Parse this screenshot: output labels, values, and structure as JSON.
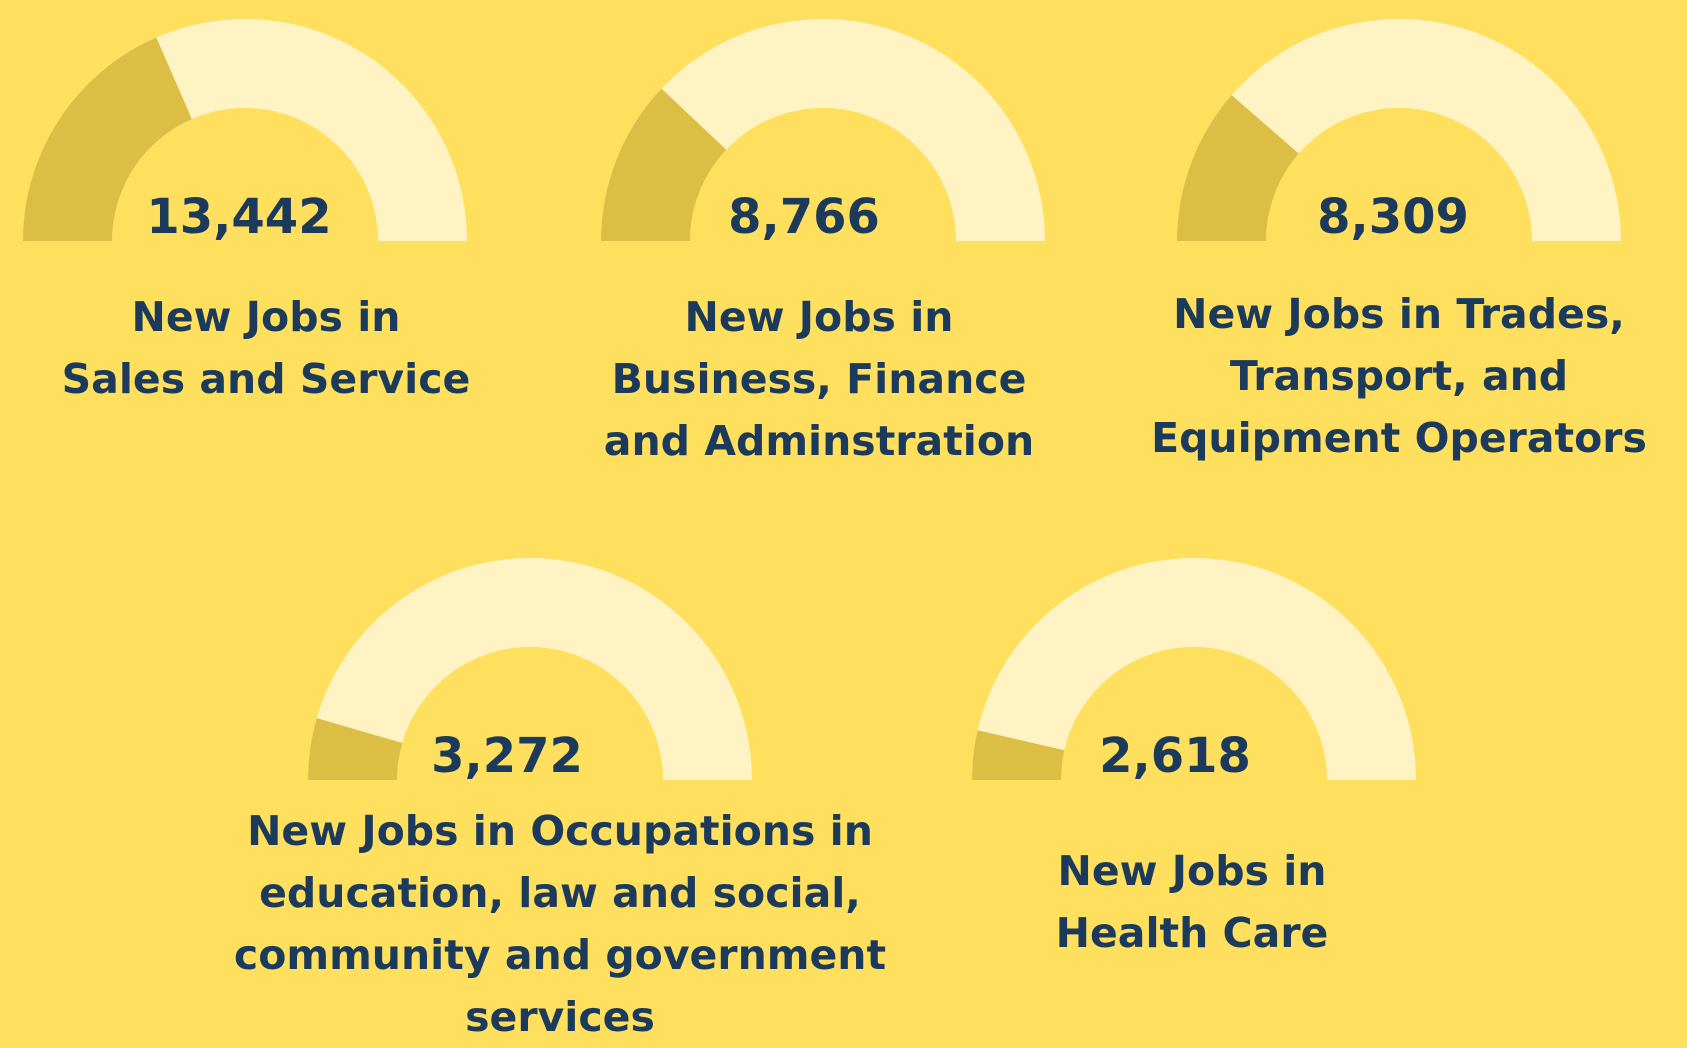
{
  "chart_data": {
    "type": "gauge",
    "categories": [
      "New Jobs in\nSales and Service",
      "New Jobs in\nBusiness, Finance\nand Adminstration",
      "New Jobs in Trades,\nTransport, and\nEquipment Operators",
      "New Jobs in Occupations in\neducation, law and social,\ncommunity and government\nservices",
      "New Jobs in\nHealth Care"
    ],
    "values": [
      13442,
      8766,
      8309,
      3272,
      2618
    ],
    "value_labels": [
      "13,442",
      "8,766",
      "8,309",
      "3,272",
      "2,618"
    ],
    "fill_color": "#dcbe45",
    "track_color": "#fff3c4",
    "background": "#ffdf5e",
    "text_color": "#1b3a5c"
  }
}
